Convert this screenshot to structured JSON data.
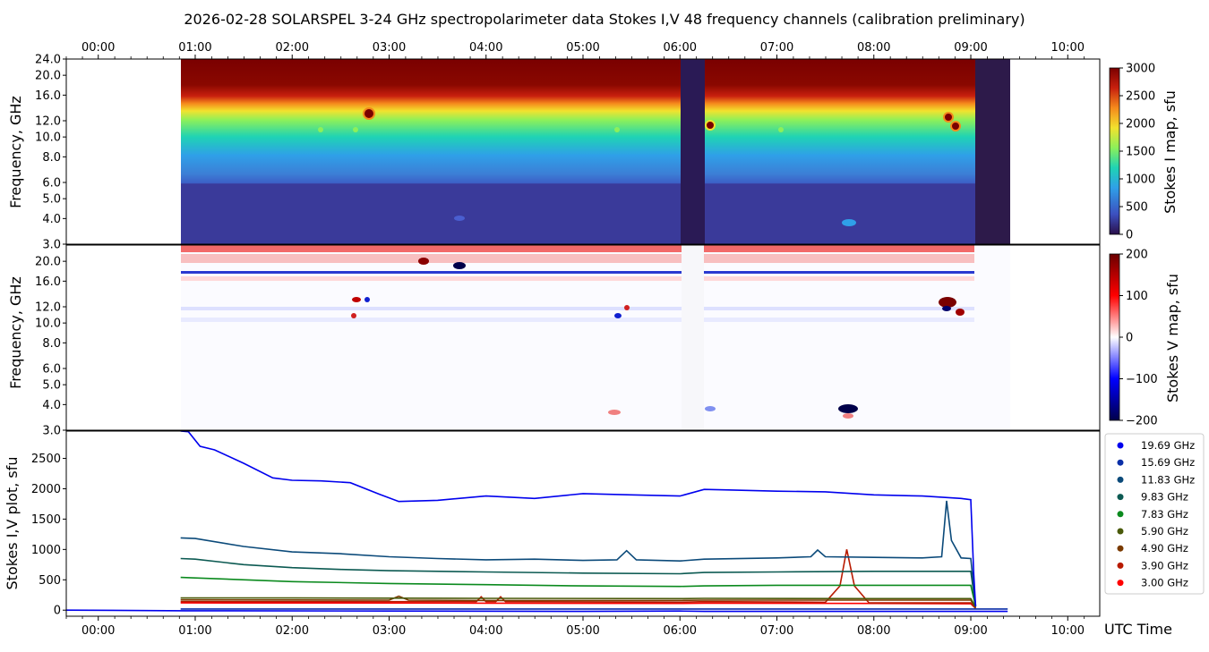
{
  "chart_data": {
    "title": "2026-02-28  SOLARSPEL  3-24 GHz spectropolarimeter data   Stokes I,V   48 frequency channels   (calibration preliminary)",
    "x_range_hours": [
      -0.33,
      10.33
    ],
    "time_ticks": [
      "00:00",
      "01:00",
      "02:00",
      "03:00",
      "04:00",
      "05:00",
      "06:00",
      "07:00",
      "08:00",
      "09:00",
      "10:00"
    ],
    "xlabel": "UTC Time",
    "data_window_hours": [
      0.85,
      9.38
    ],
    "data_gaps_hours": [
      [
        6.0,
        6.25
      ],
      [
        9.05,
        9.38
      ]
    ],
    "panels": [
      {
        "type": "heatmap",
        "name": "stokes-i-map",
        "ylabel": "Frequency, GHz",
        "y_ticks": [
          "3.0",
          "4.0",
          "5.0",
          "6.0",
          "8.0",
          "10.0",
          "12.0",
          "16.0",
          "20.0",
          "24.0"
        ],
        "ylim_ghz": [
          3.0,
          24.0
        ],
        "colorbar_label": "Stokes I map, sfu",
        "colorbar_ticks": [
          "0",
          "500",
          "1000",
          "1500",
          "2000",
          "2500",
          "3000"
        ],
        "colorbar_range": [
          0,
          3000
        ],
        "colormap": [
          "#2a0f4a",
          "#3c4fbf",
          "#2fa0e8",
          "#1fd3b4",
          "#8cf05a",
          "#f2e22e",
          "#f58a1c",
          "#c8200e",
          "#7a0000"
        ]
      },
      {
        "type": "heatmap",
        "name": "stokes-v-map",
        "ylabel": "Frequency, GHz",
        "y_ticks": [
          "3.0",
          "4.0",
          "5.0",
          "6.0",
          "8.0",
          "10.0",
          "12.0",
          "16.0",
          "20.0"
        ],
        "ylim_ghz": [
          3.0,
          24.0
        ],
        "colorbar_label": "Stokes V map, sfu",
        "colorbar_ticks": [
          "−200",
          "−100",
          "0",
          "100",
          "200"
        ],
        "colorbar_range": [
          -200,
          200
        ],
        "colormap": [
          "#00004a",
          "#0000ff",
          "#ffffff",
          "#ff0000",
          "#6a0000"
        ]
      },
      {
        "type": "line",
        "name": "stokes-iv-plot",
        "ylabel": "Stokes I,V plot, sfu",
        "y_ticks": [
          "0",
          "500",
          "1000",
          "1500",
          "2000",
          "2500"
        ],
        "ylim": [
          -100,
          2950
        ],
        "series": [
          {
            "name": "19.69 GHz",
            "color": "#0000ee",
            "t": [
              0.85,
              0.93,
              1.05,
              1.2,
              1.5,
              1.8,
              2.0,
              2.3,
              2.6,
              2.9,
              3.1,
              3.5,
              4.0,
              4.5,
              5.0,
              5.5,
              6.0,
              6.25,
              6.5,
              7.0,
              7.5,
              8.0,
              8.5,
              8.9,
              9.0,
              9.03,
              9.05
            ],
            "v": [
              2950,
              2940,
              2700,
              2640,
              2420,
              2180,
              2140,
              2130,
              2100,
              1910,
              1790,
              1810,
              1880,
              1840,
              1920,
              1900,
              1880,
              1990,
              1980,
              1960,
              1950,
              1900,
              1880,
              1840,
              1820,
              600,
              60
            ]
          },
          {
            "name": "15.69 GHz",
            "color": "#0a2fa8",
            "t": [
              0.85,
              9.38
            ],
            "v": [
              20,
              20
            ]
          },
          {
            "name": "11.83 GHz",
            "color": "#0b4a7a",
            "t": [
              0.85,
              1.0,
              1.5,
              2.0,
              2.5,
              3.0,
              3.5,
              4.0,
              4.5,
              5.0,
              5.35,
              5.45,
              5.55,
              6.0,
              6.25,
              7.0,
              7.35,
              7.42,
              7.5,
              8.0,
              8.5,
              8.7,
              8.75,
              8.8,
              8.9,
              9.0,
              9.05
            ],
            "v": [
              1190,
              1180,
              1050,
              960,
              930,
              880,
              850,
              830,
              840,
              820,
              830,
              980,
              830,
              810,
              840,
              860,
              880,
              990,
              880,
              870,
              860,
              880,
              1800,
              1150,
              860,
              850,
              80
            ]
          },
          {
            "name": "9.83 GHz",
            "color": "#0c5a52",
            "t": [
              0.85,
              1.0,
              1.5,
              2.0,
              2.5,
              3.0,
              4.0,
              5.0,
              6.0,
              6.25,
              7.0,
              8.0,
              9.0,
              9.05
            ],
            "v": [
              850,
              840,
              750,
              700,
              670,
              650,
              630,
              610,
              600,
              620,
              630,
              640,
              640,
              60
            ]
          },
          {
            "name": "7.83 GHz",
            "color": "#0b8a1e",
            "t": [
              0.85,
              1.0,
              2.0,
              3.0,
              4.0,
              5.0,
              6.0,
              6.25,
              7.0,
              8.0,
              9.0,
              9.05
            ],
            "v": [
              540,
              530,
              470,
              440,
              420,
              400,
              390,
              400,
              410,
              410,
              410,
              60
            ]
          },
          {
            "name": "5.90 GHz",
            "color": "#4a5a0a",
            "t": [
              0.85,
              2.0,
              4.0,
              6.0,
              6.25,
              8.0,
              9.0,
              9.05
            ],
            "v": [
              200,
              200,
              195,
              190,
              195,
              190,
              190,
              50
            ]
          },
          {
            "name": "4.90 GHz",
            "color": "#7a3a00",
            "t": [
              0.85,
              2.0,
              3.0,
              3.1,
              3.2,
              4.0,
              6.0,
              6.25,
              9.0,
              9.05
            ],
            "v": [
              170,
              168,
              165,
              230,
              165,
              160,
              160,
              165,
              165,
              40
            ]
          },
          {
            "name": "3.90 GHz",
            "color": "#b81a00",
            "t": [
              0.85,
              2.0,
              3.5,
              3.9,
              3.95,
              4.0,
              4.1,
              4.15,
              4.2,
              6.0,
              6.25,
              7.5,
              7.65,
              7.72,
              7.8,
              7.95,
              9.0,
              9.05
            ],
            "v": [
              140,
              140,
              140,
              140,
              220,
              140,
              140,
              220,
              140,
              130,
              140,
              130,
              400,
              1000,
              400,
              120,
              120,
              30
            ]
          },
          {
            "name": "3.00 GHz",
            "color": "#ff0000",
            "t": [
              0.85,
              2.0,
              4.0,
              6.0,
              6.25,
              8.0,
              9.0,
              9.05
            ],
            "v": [
              120,
              118,
              115,
              110,
              115,
              110,
              105,
              30
            ]
          }
        ],
        "v_trace": {
          "color": "#0000ee",
          "t": [
            -0.33,
            0.9,
            3.0,
            5.0,
            6.0,
            6.25,
            8.0,
            9.38
          ],
          "v": [
            0,
            -10,
            -15,
            -20,
            -15,
            -20,
            -20,
            -20
          ]
        }
      }
    ]
  }
}
